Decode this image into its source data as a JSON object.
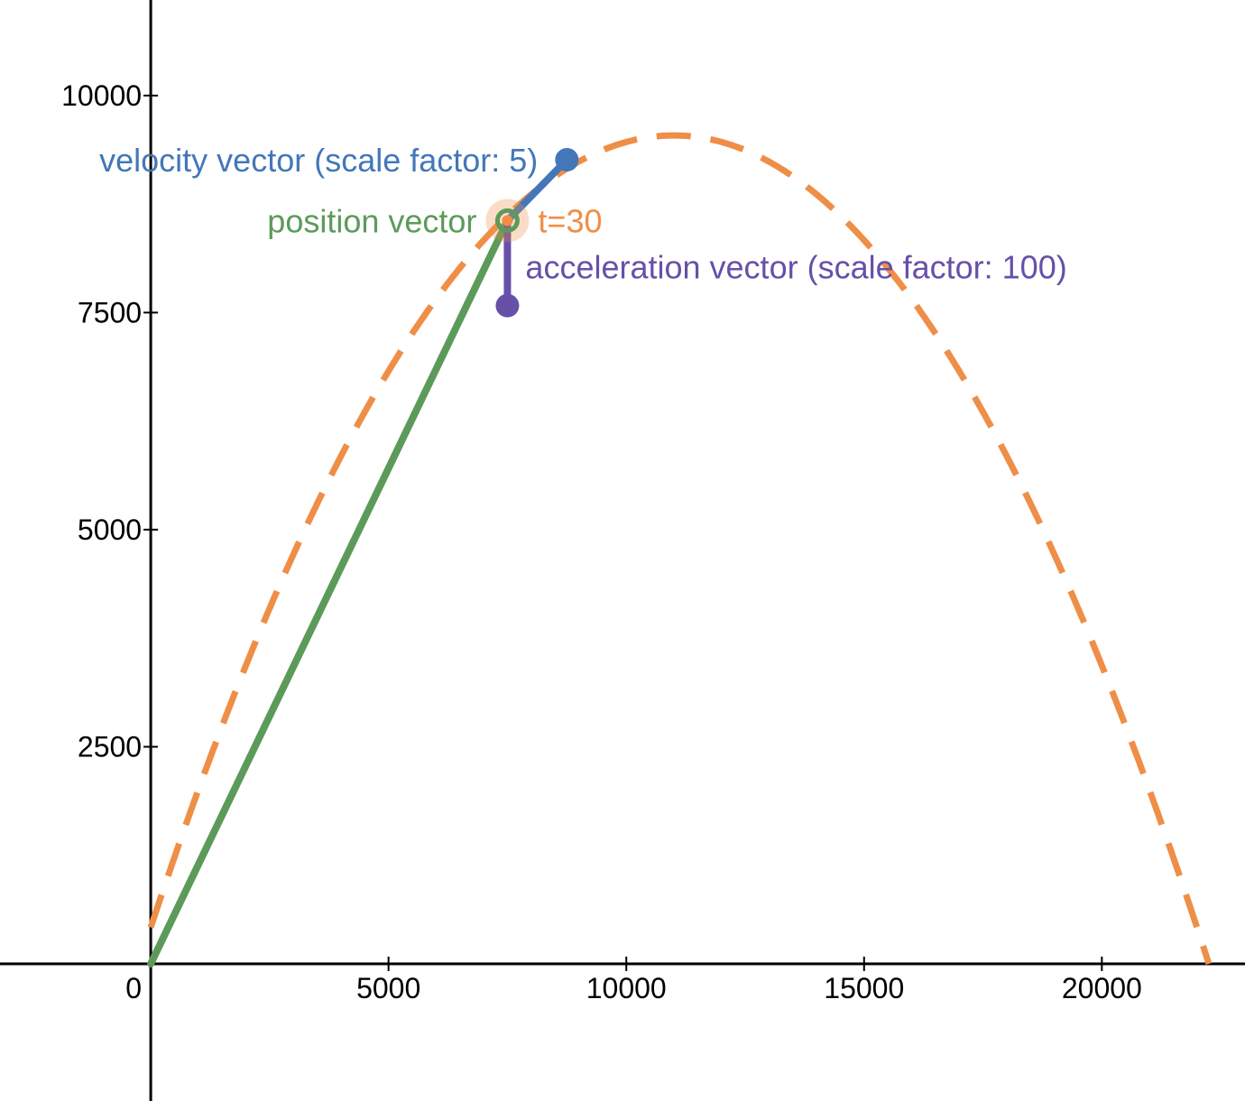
{
  "chart_data": {
    "type": "line",
    "xlim": [
      -3170,
      23010
    ],
    "ylim": [
      -1580,
      11100
    ],
    "x_ticks": [
      {
        "value": 0,
        "label": "0"
      },
      {
        "value": 5000,
        "label": "5000"
      },
      {
        "value": 10000,
        "label": "10000"
      },
      {
        "value": 15000,
        "label": "15000"
      },
      {
        "value": 20000,
        "label": "20000"
      }
    ],
    "y_ticks": [
      {
        "value": 2500,
        "label": "2500"
      },
      {
        "value": 5000,
        "label": "5000"
      },
      {
        "value": 7500,
        "label": "7500"
      },
      {
        "value": 10000,
        "label": "10000"
      }
    ],
    "grid": false,
    "trajectory": {
      "style": "dashed",
      "color": "#ef8e47",
      "points": [
        [
          0,
          0
        ],
        [
          1000,
          1681
        ],
        [
          2000,
          3241
        ],
        [
          3000,
          4680
        ],
        [
          4000,
          5998
        ],
        [
          5000,
          7194
        ],
        [
          6000,
          8269
        ],
        [
          7000,
          9223
        ],
        [
          7500,
          8560
        ],
        [
          8000,
          8907
        ],
        [
          9000,
          9249
        ],
        [
          10000,
          9471
        ],
        [
          11000,
          9540
        ],
        [
          12000,
          9471
        ],
        [
          13000,
          9257
        ],
        [
          14000,
          8905
        ],
        [
          15000,
          8410
        ],
        [
          16000,
          7771
        ],
        [
          17000,
          6990
        ],
        [
          18000,
          6065
        ],
        [
          19000,
          4998
        ],
        [
          20000,
          3788
        ],
        [
          21000,
          2435
        ],
        [
          22000,
          940
        ],
        [
          22250,
          0
        ]
      ]
    },
    "point": {
      "t_label": "t=30",
      "x": 7500,
      "y": 8560,
      "color": "#ef8e47"
    },
    "vectors": [
      {
        "name": "position vector",
        "label": "position vector",
        "color": "#5c9a5a",
        "from": [
          0,
          0
        ],
        "to": [
          7500,
          8560
        ]
      },
      {
        "name": "velocity vector",
        "label": "velocity vector (scale factor: 5)",
        "color": "#4377b8",
        "from": [
          7500,
          8560
        ],
        "to": [
          8750,
          9260
        ]
      },
      {
        "name": "acceleration vector",
        "label": "acceleration vector (scale factor: 100)",
        "color": "#6650a8",
        "from": [
          7500,
          8560
        ],
        "to": [
          7500,
          7580
        ]
      }
    ]
  }
}
